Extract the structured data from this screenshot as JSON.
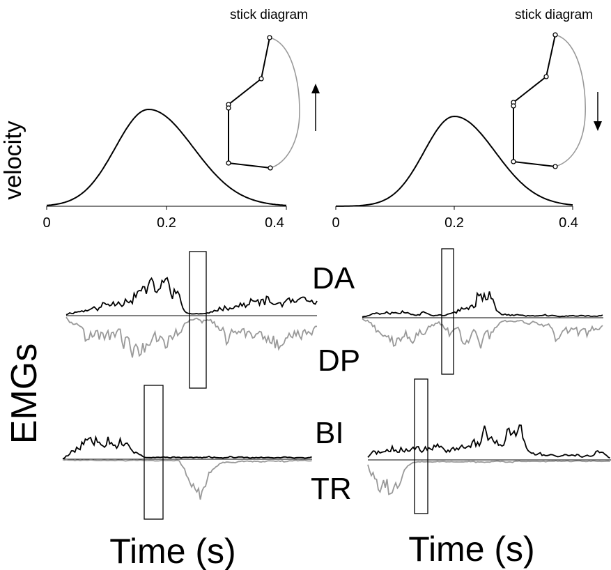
{
  "labels": {
    "velocity": "velocity",
    "emgs": "EMGs",
    "time_left": "Time (s)",
    "time_right": "Time (s)",
    "stick_left": "stick diagram",
    "stick_right": "stick diagram",
    "muscle_da": "DA",
    "muscle_dp": "DP",
    "muscle_bi": "BI",
    "muscle_tr": "TR"
  },
  "colors": {
    "agonist": "#000000",
    "antagonist": "#999999",
    "box": "#000000"
  },
  "chart_data": [
    {
      "type": "line",
      "panel": "velocity-left",
      "ylabel": "velocity",
      "xlim": [
        0,
        0.4
      ],
      "ticks": [
        "0",
        "0.2",
        "0.4"
      ],
      "tick_values": [
        0,
        0.2,
        0.4
      ],
      "peak_time": 0.17,
      "peak_sigma": 0.065,
      "movement_direction": "up"
    },
    {
      "type": "line",
      "panel": "velocity-right",
      "xlim": [
        0,
        0.4
      ],
      "ticks": [
        "0",
        "0.2",
        "0.4"
      ],
      "tick_values": [
        0,
        0.2,
        0.4
      ],
      "peak_time": 0.2,
      "peak_sigma": 0.06,
      "movement_direction": "down"
    }
  ]
}
